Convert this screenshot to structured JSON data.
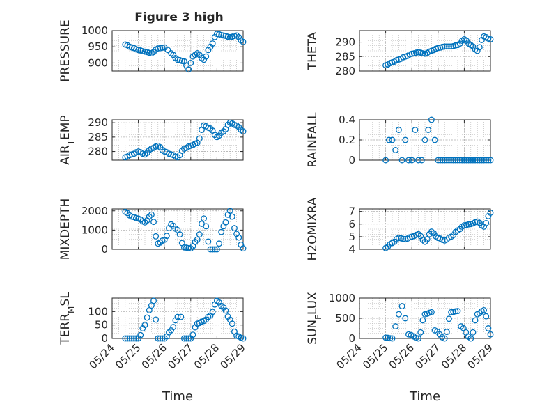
{
  "figure": {
    "title": "Figure 3 high",
    "colors": {
      "marker": "#0072bd",
      "axis": "#262626",
      "grid": "#b0b0b0",
      "background": "#ffffff"
    },
    "time_ticks": [
      "05/24",
      "05/25",
      "05/26",
      "05/27",
      "05/28",
      "05/29"
    ],
    "xlabel": "Time"
  },
  "chart_data": [
    {
      "type": "scatter",
      "ylabel": "PRESSURE",
      "ylabel_sub": "",
      "ylabel_tail": "",
      "xlim": [
        "05/24",
        "05/29"
      ],
      "ylim": [
        875,
        1000
      ],
      "yticks": [
        "900",
        "950",
        "1000"
      ],
      "ytick_values": [
        900,
        950,
        1000
      ],
      "show_time_labels": false,
      "x": [
        "05/24 12:00",
        "05/24 18:00",
        "05/25 00:00",
        "05/25 06:00",
        "05/25 12:00",
        "05/25 18:00",
        "05/26 00:00",
        "05/26 03:00",
        "05/26 06:00",
        "05/26 12:00",
        "05/26 18:00",
        "05/26 22:00",
        "05/27 02:00",
        "05/27 06:00",
        "05/27 12:00",
        "05/27 18:00",
        "05/28 00:00",
        "05/28 06:00",
        "05/28 12:00",
        "05/28 18:00",
        "05/29 00:00"
      ],
      "y": [
        957,
        948,
        940,
        935,
        930,
        945,
        948,
        940,
        930,
        910,
        905,
        880,
        920,
        930,
        910,
        950,
        990,
        985,
        980,
        985,
        965
      ]
    },
    {
      "type": "scatter",
      "ylabel": "THETA",
      "ylabel_sub": "",
      "ylabel_tail": "",
      "xlim": [
        "05/24",
        "05/29"
      ],
      "ylim": [
        280,
        294
      ],
      "yticks": [
        "280",
        "285",
        "290"
      ],
      "ytick_values": [
        280,
        285,
        290
      ],
      "show_time_labels": false,
      "x": [
        "05/25 00:00",
        "05/25 06:00",
        "05/25 12:00",
        "05/25 18:00",
        "05/26 00:00",
        "05/26 06:00",
        "05/26 12:00",
        "05/26 18:00",
        "05/27 00:00",
        "05/27 06:00",
        "05/27 12:00",
        "05/27 18:00",
        "05/28 00:00",
        "05/28 06:00",
        "05/28 12:00",
        "05/28 18:00",
        "05/29 00:00"
      ],
      "y": [
        282,
        283,
        284,
        285,
        286,
        286.5,
        286,
        287,
        288,
        288.5,
        288.5,
        289,
        291,
        289,
        287,
        292,
        291
      ]
    },
    {
      "type": "scatter",
      "ylabel": "AIR",
      "ylabel_sub": "T",
      "ylabel_tail": "EMP",
      "xlim": [
        "05/24",
        "05/29"
      ],
      "ylim": [
        277,
        291
      ],
      "yticks": [
        "280",
        "285",
        "290"
      ],
      "ytick_values": [
        280,
        285,
        290
      ],
      "show_time_labels": false,
      "x": [
        "05/24 12:00",
        "05/24 18:00",
        "05/25 00:00",
        "05/25 06:00",
        "05/25 12:00",
        "05/25 18:00",
        "05/26 00:00",
        "05/26 06:00",
        "05/26 12:00",
        "05/26 18:00",
        "05/27 00:00",
        "05/27 06:00",
        "05/27 12:00",
        "05/27 18:00",
        "05/28 00:00",
        "05/28 06:00",
        "05/28 12:00",
        "05/28 18:00",
        "05/29 00:00"
      ],
      "y": [
        278,
        279,
        280,
        279,
        281,
        282,
        280,
        279,
        278,
        281,
        282,
        283,
        289,
        288,
        285,
        287,
        290,
        289,
        287
      ]
    },
    {
      "type": "scatter",
      "ylabel": "RAINFALL",
      "ylabel_sub": "",
      "ylabel_tail": "",
      "xlim": [
        "05/24",
        "05/29"
      ],
      "ylim": [
        0,
        0.4
      ],
      "yticks": [
        "0",
        "0.2",
        "0.4"
      ],
      "ytick_values": [
        0,
        0.2,
        0.4
      ],
      "show_time_labels": false,
      "x": [
        "05/25 00:00",
        "05/25 03:00",
        "05/25 06:00",
        "05/25 09:00",
        "05/25 12:00",
        "05/25 15:00",
        "05/25 18:00",
        "05/25 21:00",
        "05/26 00:00",
        "05/26 03:00",
        "05/26 06:00",
        "05/26 09:00",
        "05/26 12:00",
        "05/26 15:00",
        "05/26 18:00",
        "05/26 21:00",
        "05/27 00:00",
        "05/27 06:00",
        "05/27 12:00",
        "05/27 18:00",
        "05/28 00:00",
        "05/28 06:00",
        "05/28 12:00",
        "05/28 18:00",
        "05/29 00:00"
      ],
      "y": [
        0,
        0.2,
        0.2,
        0.1,
        0.3,
        0,
        0.2,
        0,
        0,
        0.3,
        0,
        0,
        0.2,
        0.3,
        0.4,
        0.2,
        0,
        0,
        0,
        0,
        0,
        0,
        0,
        0,
        0
      ]
    },
    {
      "type": "scatter",
      "ylabel": "MIXDEPTH",
      "ylabel_sub": "",
      "ylabel_tail": "",
      "xlim": [
        "05/24",
        "05/29"
      ],
      "ylim": [
        0,
        2100
      ],
      "yticks": [
        "0",
        "1000",
        "2000"
      ],
      "ytick_values": [
        0,
        1000,
        2000
      ],
      "show_time_labels": false,
      "x": [
        "05/24 12:00",
        "05/24 18:00",
        "05/25 00:00",
        "05/25 06:00",
        "05/25 12:00",
        "05/25 18:00",
        "05/26 00:00",
        "05/26 06:00",
        "05/26 12:00",
        "05/26 18:00",
        "05/27 00:00",
        "05/27 06:00",
        "05/27 12:00",
        "05/27 18:00",
        "05/28 00:00",
        "05/28 06:00",
        "05/28 12:00",
        "05/28 18:00",
        "05/29 00:00"
      ],
      "y": [
        1950,
        1700,
        1600,
        1400,
        1800,
        300,
        500,
        1300,
        1000,
        100,
        50,
        500,
        1600,
        0,
        0,
        1200,
        2000,
        800,
        50
      ]
    },
    {
      "type": "scatter",
      "ylabel": "H2OMIXRA",
      "ylabel_sub": "",
      "ylabel_tail": "",
      "xlim": [
        "05/24",
        "05/29"
      ],
      "ylim": [
        4,
        7.2
      ],
      "yticks": [
        "4",
        "5",
        "6",
        "7"
      ],
      "ytick_values": [
        4,
        5,
        6,
        7
      ],
      "show_time_labels": false,
      "x": [
        "05/25 00:00",
        "05/25 06:00",
        "05/25 12:00",
        "05/25 18:00",
        "05/26 00:00",
        "05/26 06:00",
        "05/26 12:00",
        "05/26 18:00",
        "05/27 00:00",
        "05/27 06:00",
        "05/27 12:00",
        "05/27 18:00",
        "05/28 00:00",
        "05/28 06:00",
        "05/28 12:00",
        "05/28 18:00",
        "05/29 00:00"
      ],
      "y": [
        4.1,
        4.5,
        4.9,
        4.8,
        5.0,
        5.2,
        4.6,
        5.4,
        4.9,
        4.7,
        5.0,
        5.5,
        5.9,
        6.0,
        6.2,
        5.8,
        6.9
      ]
    },
    {
      "type": "scatter",
      "ylabel": "TERR",
      "ylabel_sub": "M",
      "ylabel_tail": "SL",
      "xlim": [
        "05/24",
        "05/29"
      ],
      "ylim": [
        0,
        150
      ],
      "yticks": [
        "0",
        "50",
        "100"
      ],
      "ytick_values": [
        0,
        50,
        100
      ],
      "show_time_labels": true,
      "x": [
        "05/24 12:00",
        "05/24 18:00",
        "05/25 00:00",
        "05/25 06:00",
        "05/25 10:00",
        "05/25 14:00",
        "05/25 18:00",
        "05/26 00:00",
        "05/26 06:00",
        "05/26 12:00",
        "05/26 15:00",
        "05/26 18:00",
        "05/27 00:00",
        "05/27 06:00",
        "05/27 12:00",
        "05/27 18:00",
        "05/28 00:00",
        "05/28 06:00",
        "05/28 12:00",
        "05/28 18:00",
        "05/29 00:00"
      ],
      "y": [
        0,
        0,
        0,
        50,
        105,
        140,
        0,
        0,
        30,
        80,
        80,
        0,
        0,
        55,
        65,
        85,
        140,
        115,
        70,
        10,
        0
      ]
    },
    {
      "type": "scatter",
      "ylabel": "SUN",
      "ylabel_sub": "F",
      "ylabel_tail": "LUX",
      "xlim": [
        "05/24",
        "05/29"
      ],
      "ylim": [
        0,
        1000
      ],
      "yticks": [
        "0",
        "500",
        "1000"
      ],
      "ytick_values": [
        0,
        500,
        1000
      ],
      "show_time_labels": true,
      "x": [
        "05/25 00:00",
        "05/25 06:00",
        "05/25 09:00",
        "05/25 12:00",
        "05/25 15:00",
        "05/25 18:00",
        "05/25 21:00",
        "05/26 06:00",
        "05/26 12:00",
        "05/26 18:00",
        "05/26 21:00",
        "05/27 06:00",
        "05/27 12:00",
        "05/27 18:00",
        "05/27 21:00",
        "05/28 06:00",
        "05/28 12:00",
        "05/28 18:00",
        "05/29 00:00"
      ],
      "y": [
        20,
        0,
        300,
        600,
        800,
        500,
        100,
        0,
        600,
        650,
        200,
        0,
        650,
        680,
        300,
        0,
        600,
        700,
        100
      ]
    }
  ]
}
